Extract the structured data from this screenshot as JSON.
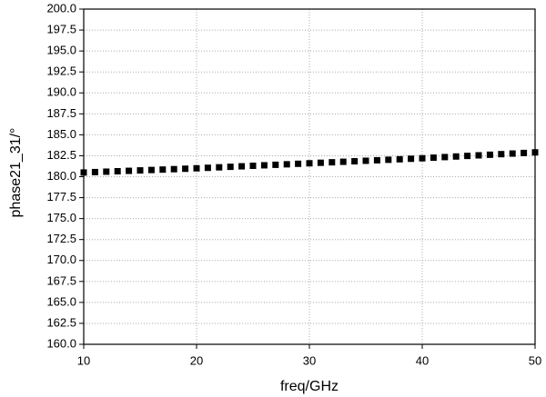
{
  "chart_data": {
    "type": "scatter",
    "x_label": "freq/GHz",
    "y_label": "phase21_31/°",
    "x": [
      10,
      11,
      12,
      13,
      14,
      15,
      16,
      17,
      18,
      19,
      20,
      21,
      22,
      23,
      24,
      25,
      26,
      27,
      28,
      29,
      30,
      31,
      32,
      33,
      34,
      35,
      36,
      37,
      38,
      39,
      40,
      41,
      42,
      43,
      44,
      45,
      46,
      47,
      48,
      49,
      50
    ],
    "series": [
      {
        "color": "#000000",
        "values": [
          180.5,
          180.55,
          180.6,
          180.65,
          180.7,
          180.75,
          180.8,
          180.85,
          180.9,
          180.95,
          181.0,
          181.06,
          181.12,
          181.18,
          181.24,
          181.3,
          181.36,
          181.42,
          181.48,
          181.54,
          181.6,
          181.66,
          181.72,
          181.78,
          181.84,
          181.9,
          181.96,
          182.02,
          182.08,
          182.14,
          182.2,
          182.27,
          182.34,
          182.41,
          182.48,
          182.55,
          182.62,
          182.69,
          182.76,
          182.83,
          182.9
        ]
      }
    ],
    "xlim": [
      10,
      50
    ],
    "xticks": [
      10,
      20,
      30,
      40,
      50
    ],
    "ylim": [
      160,
      200
    ],
    "yticks": [
      {
        "value": 160,
        "label": "160.0"
      },
      162.5,
      {
        "value": 165,
        "label": "165.0"
      },
      167.5,
      {
        "value": 170,
        "label": "170.0"
      },
      172.5,
      {
        "value": 175,
        "label": "175.0"
      },
      177.5,
      {
        "value": 180,
        "label": "180.0"
      },
      182.5,
      {
        "value": 185,
        "label": "185.0"
      },
      187.5,
      {
        "value": 190,
        "label": "190.0"
      },
      192.5,
      {
        "value": 195,
        "label": "195.0"
      },
      197.5,
      {
        "value": 200,
        "label": "200.0"
      }
    ],
    "grid": true,
    "marker": "square"
  }
}
